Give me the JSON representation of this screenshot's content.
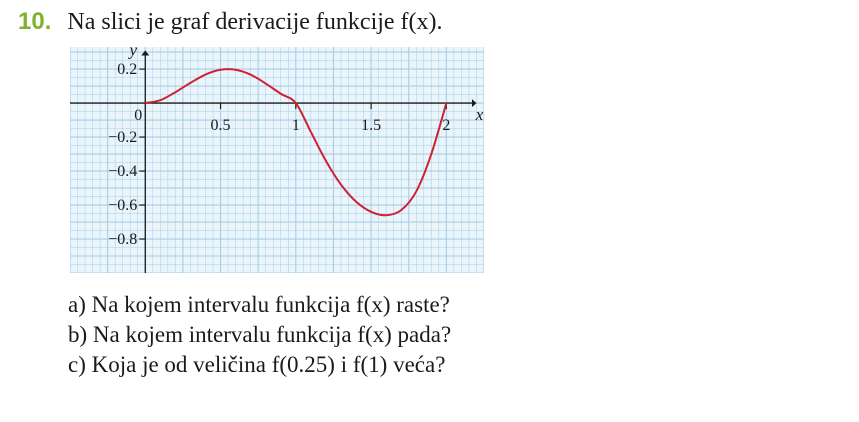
{
  "problem": {
    "number": "10.",
    "statement": "Na slici je graf derivacije funkcije  f(x)."
  },
  "chart_data": {
    "type": "line",
    "xlabel": "x",
    "ylabel": "y",
    "xlim": [
      -0.5,
      2.25
    ],
    "ylim": [
      -1.0,
      0.33
    ],
    "grid": true,
    "x_ticks": [
      "0.5",
      "1",
      "1.5",
      "2"
    ],
    "y_ticks": [
      "0.2",
      "0",
      "−0.2",
      "−0.4",
      "−0.6",
      "−0.8"
    ],
    "series": [
      {
        "color": "#cc2233",
        "x": [
          0,
          0.1,
          0.2,
          0.3,
          0.4,
          0.5,
          0.6,
          0.7,
          0.8,
          0.9,
          1.0,
          1.1,
          1.2,
          1.3,
          1.4,
          1.5,
          1.6,
          1.7,
          1.8,
          1.9,
          2.0
        ],
        "y": [
          0,
          0.017,
          0.064,
          0.119,
          0.168,
          0.196,
          0.196,
          0.167,
          0.115,
          0.055,
          0.0,
          -0.17,
          -0.34,
          -0.48,
          -0.58,
          -0.64,
          -0.66,
          -0.63,
          -0.52,
          -0.3,
          0.0
        ]
      }
    ],
    "colors": {
      "grid": "#a8cde6",
      "background": "#eaf4fb",
      "curve": "#cc2233"
    }
  },
  "questions": [
    "a) Na kojem intervalu funkcija  f(x)  raste?",
    "b) Na kojem intervalu funkcija  f(x)  pada?",
    "c) Koja je od veličina  f(0.25)  i  f(1)  veća?"
  ]
}
